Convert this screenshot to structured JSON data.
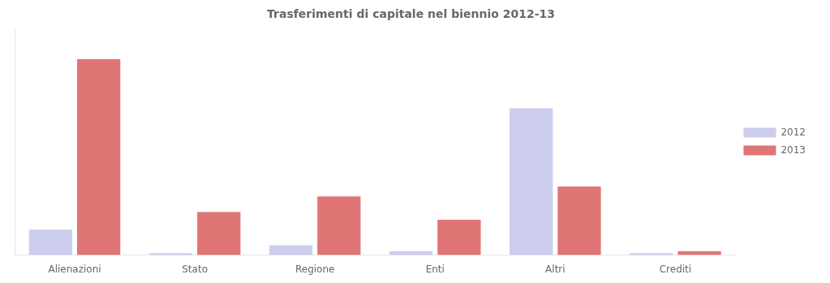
{
  "chart_data": {
    "type": "bar",
    "title": "Trasferimenti di capitale nel biennio 2012-13",
    "categories": [
      "Alienazioni",
      "Stato",
      "Regione",
      "Enti",
      "Altri",
      "Crediti"
    ],
    "series": [
      {
        "name": "2012",
        "color": "#ccccee",
        "values": [
          13,
          1,
          5,
          2,
          75,
          1
        ]
      },
      {
        "name": "2013",
        "color": "#e07575",
        "values": [
          100,
          22,
          30,
          18,
          35,
          2
        ]
      }
    ],
    "ylim": [
      0,
      115
    ],
    "yticks": [],
    "grid": false,
    "legend": "right",
    "tick_labels": "x"
  }
}
